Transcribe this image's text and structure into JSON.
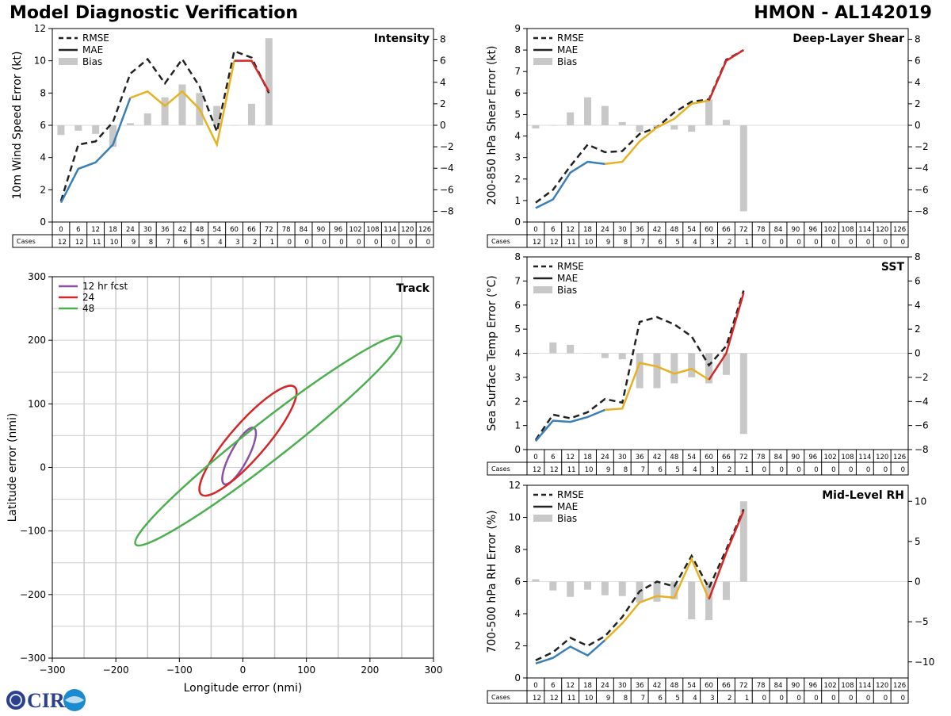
{
  "header": {
    "title_left": "Model Diagnostic Verification",
    "title_right": "HMON - AL142019"
  },
  "logo": {
    "text": "CIRA"
  },
  "colors": {
    "rmse": "#222222",
    "mae_early": "#3a7fb5",
    "mae_mid": "#e6b222",
    "mae_late": "#d62728",
    "bias": "#c8c8c8",
    "track_12": "#8e4ea6",
    "track_24": "#d62728",
    "track_48": "#4caf50"
  },
  "legend_labels": {
    "rmse": "RMSE",
    "mae": "MAE",
    "bias": "Bias"
  },
  "leads": [
    0,
    6,
    12,
    18,
    24,
    30,
    36,
    42,
    48,
    54,
    60,
    66,
    72,
    78,
    84,
    90,
    96,
    102,
    108,
    114,
    120,
    126
  ],
  "cases": [
    12,
    12,
    11,
    10,
    9,
    8,
    7,
    6,
    5,
    4,
    3,
    2,
    1,
    0,
    0,
    0,
    0,
    0,
    0,
    0,
    0,
    0
  ],
  "cases_label": "Cases",
  "chart_data": [
    {
      "id": "intensity",
      "type": "line",
      "title": "Intensity",
      "ylabel": "10m Wind Speed Error (kt)",
      "ylim": [
        0,
        12
      ],
      "yticks": [
        0,
        2,
        4,
        6,
        8,
        10,
        12
      ],
      "y2lim": [
        -9,
        9
      ],
      "y2ticks": [
        -8,
        -6,
        -4,
        -2,
        0,
        2,
        4,
        6,
        8
      ],
      "rmse": [
        1.3,
        4.8,
        5.0,
        6.2,
        9.2,
        10.1,
        8.6,
        10.1,
        8.4,
        5.6,
        10.6,
        10.2,
        8.0
      ],
      "mae": [
        1.2,
        3.3,
        3.7,
        4.8,
        7.7,
        8.1,
        7.2,
        8.1,
        7.0,
        4.8,
        10.0,
        10.0,
        8.1
      ],
      "bias": [
        -0.9,
        -0.5,
        -0.8,
        -2.0,
        0.2,
        1.1,
        2.6,
        3.8,
        3.0,
        1.8,
        0.0,
        2.0,
        8.1
      ]
    },
    {
      "id": "shear",
      "type": "line",
      "title": "Deep-Layer Shear",
      "ylabel": "200-850 hPa Shear Error (kt)",
      "ylim": [
        0,
        9
      ],
      "yticks": [
        0,
        1,
        2,
        3,
        4,
        5,
        6,
        7,
        8,
        9
      ],
      "y2lim": [
        -9,
        9
      ],
      "y2ticks": [
        -8,
        -6,
        -4,
        -2,
        0,
        2,
        4,
        6,
        8
      ],
      "rmse": [
        0.9,
        1.5,
        2.6,
        3.6,
        3.25,
        3.3,
        4.1,
        4.4,
        5.1,
        5.6,
        5.7,
        7.55,
        8.0
      ],
      "mae": [
        0.65,
        1.05,
        2.3,
        2.8,
        2.7,
        2.8,
        3.75,
        4.4,
        4.8,
        5.5,
        5.65,
        7.5,
        8.0
      ],
      "bias": [
        -0.3,
        0.0,
        1.2,
        2.6,
        1.8,
        0.3,
        -0.6,
        -0.2,
        -0.4,
        -0.6,
        2.4,
        0.5,
        -8.0
      ]
    },
    {
      "id": "sst",
      "type": "line",
      "title": "SST",
      "ylabel": "Sea Surface Temp Error (°C)",
      "ylim": [
        0,
        8
      ],
      "yticks": [
        0,
        1,
        2,
        3,
        4,
        5,
        6,
        7,
        8
      ],
      "y2lim": [
        -8,
        8
      ],
      "y2ticks": [
        -8,
        -6,
        -4,
        -2,
        0,
        2,
        4,
        6,
        8
      ],
      "rmse": [
        0.4,
        1.45,
        1.3,
        1.55,
        2.1,
        1.95,
        5.3,
        5.5,
        5.2,
        4.7,
        3.5,
        4.3,
        6.6
      ],
      "mae": [
        0.35,
        1.2,
        1.15,
        1.35,
        1.65,
        1.7,
        3.6,
        3.45,
        3.15,
        3.35,
        2.9,
        4.0,
        6.5
      ],
      "bias": [
        0.0,
        0.9,
        0.7,
        0.0,
        -0.4,
        -0.5,
        -2.9,
        -2.9,
        -2.5,
        -2.0,
        -2.5,
        -1.8,
        -6.7
      ]
    },
    {
      "id": "rh",
      "type": "line",
      "title": "Mid-Level RH",
      "ylabel": "700-500 hPa RH Error (%)",
      "ylim": [
        0,
        12
      ],
      "yticks": [
        0,
        2,
        4,
        6,
        8,
        10,
        12
      ],
      "y2lim": [
        -12,
        12
      ],
      "y2ticks": [
        -10,
        -5,
        0,
        5,
        10
      ],
      "rmse": [
        1.1,
        1.6,
        2.5,
        2.0,
        2.6,
        3.8,
        5.4,
        6.0,
        5.7,
        7.6,
        5.6,
        8.0,
        10.5
      ],
      "mae": [
        0.9,
        1.25,
        1.95,
        1.4,
        2.35,
        3.4,
        4.7,
        5.1,
        5.0,
        7.4,
        4.9,
        7.8,
        10.4
      ],
      "bias": [
        0.3,
        -1.1,
        -1.9,
        -1.0,
        -1.7,
        -1.8,
        -2.6,
        -2.5,
        -2.2,
        -4.7,
        -4.8,
        -2.3,
        10.0
      ]
    },
    {
      "id": "track",
      "type": "scatter",
      "title": "Track",
      "xlabel": "Longitude error (nmi)",
      "ylabel": "Latitude error (nmi)",
      "xlim": [
        -300,
        300
      ],
      "ylim": [
        -300,
        300
      ],
      "xticks": [
        -300,
        -200,
        -100,
        0,
        100,
        200,
        300
      ],
      "yticks": [
        -300,
        -200,
        -100,
        0,
        100,
        200,
        300
      ],
      "ellipses": [
        {
          "label": "12 hr fcst",
          "cx": -6,
          "cy": 18,
          "rx": 50,
          "ry": 14,
          "angle_deg": 62
        },
        {
          "label": "24",
          "cx": 8,
          "cy": 42,
          "rx": 112,
          "ry": 28,
          "angle_deg": 49
        },
        {
          "label": "48",
          "cx": 40,
          "cy": 42,
          "rx": 265,
          "ry": 30,
          "angle_deg": 38
        }
      ]
    }
  ]
}
